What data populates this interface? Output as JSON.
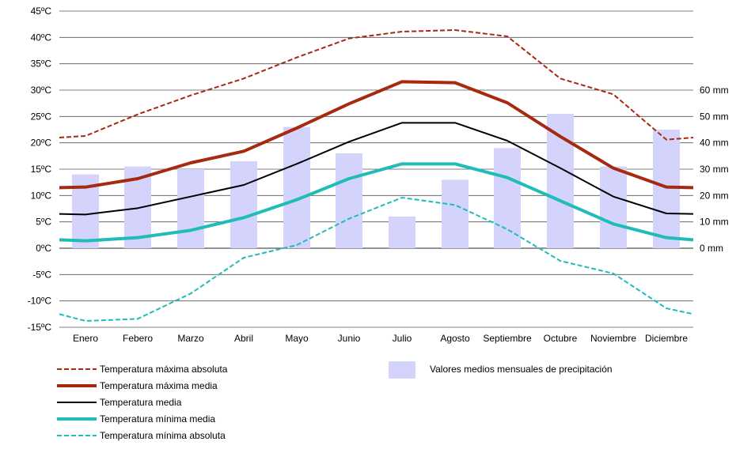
{
  "chart_data": {
    "type": "line+bar",
    "categories": [
      "Enero",
      "Febero",
      "Marzo",
      "Abril",
      "Mayo",
      "Junio",
      "Julio",
      "Agosto",
      "Septiembre",
      "Octubre",
      "Noviembre",
      "Diciembre"
    ],
    "y_left": {
      "min": -15,
      "max": 45,
      "step": 5,
      "tick_labels": [
        "-15ºC",
        "-10ºC",
        "-5ºC",
        "0ºC",
        "5ºC",
        "10ºC",
        "15ºC",
        "20ºC",
        "25ºC",
        "30ºC",
        "35ºC",
        "40ºC",
        "45ºC"
      ]
    },
    "y_right": {
      "min": 0,
      "max": 60,
      "step": 10,
      "tick_labels": [
        "0 mm",
        "10 mm",
        "20 mm",
        "30 mm",
        "40 mm",
        "50 mm",
        "60 mm"
      ]
    },
    "grid": true,
    "precipitation": {
      "name": "Valores medios mensuales de precipitación",
      "unit": "mm",
      "color": "#d3d3fb",
      "values": [
        28,
        31,
        30,
        33,
        46,
        36,
        12,
        26,
        38,
        51,
        31,
        45
      ]
    },
    "series": [
      {
        "name": "Temperatura máxima absoluta",
        "color": "#a52a0f",
        "style": "dashed",
        "width": 2,
        "start": 21,
        "end": 21,
        "values": [
          21.3,
          25.4,
          29.0,
          32.2,
          36.2,
          39.8,
          41.1,
          41.4,
          40.2,
          32.2,
          29.2,
          20.6
        ]
      },
      {
        "name": "Temperatura máxima media",
        "color": "#a52a0f",
        "style": "solid",
        "width": 4,
        "start": 11.5,
        "end": 11.5,
        "values": [
          11.6,
          13.2,
          16.2,
          18.4,
          22.8,
          27.4,
          31.6,
          31.4,
          27.6,
          21.2,
          15.2,
          11.6
        ]
      },
      {
        "name": "Temperatura media",
        "color": "#000000",
        "style": "solid",
        "width": 2,
        "start": 6.5,
        "end": 6.5,
        "values": [
          6.4,
          7.6,
          9.8,
          12.0,
          16.0,
          20.2,
          23.8,
          23.8,
          20.4,
          15.2,
          9.8,
          6.6
        ]
      },
      {
        "name": "Temperatura mínima media",
        "color": "#1fbcb8",
        "style": "solid",
        "width": 4,
        "start": 1.6,
        "end": 1.6,
        "values": [
          1.4,
          2.0,
          3.4,
          5.8,
          9.2,
          13.2,
          16.0,
          16.0,
          13.4,
          9.0,
          4.6,
          2.0
        ]
      },
      {
        "name": "Temperatura mínima absoluta",
        "color": "#1fbcb8",
        "style": "dashed",
        "width": 2,
        "start": -12.5,
        "end": -12.5,
        "values": [
          -13.8,
          -13.4,
          -8.6,
          -1.8,
          0.6,
          5.6,
          9.6,
          8.2,
          3.6,
          -2.4,
          -4.8,
          -11.4
        ]
      }
    ]
  }
}
